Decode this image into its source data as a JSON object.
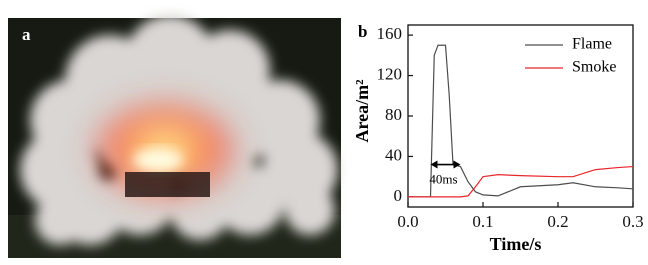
{
  "photo": {
    "label": "a"
  },
  "chart_data": {
    "type": "line",
    "label": "b",
    "xlabel": "Time/s",
    "ylabel": "Area/m²",
    "x": [
      0,
      0.02,
      0.03,
      0.035,
      0.04,
      0.05,
      0.055,
      0.06,
      0.07,
      0.08,
      0.09,
      0.1,
      0.12,
      0.15,
      0.2,
      0.22,
      0.25,
      0.28,
      0.3
    ],
    "series": [
      {
        "name": "Flame",
        "color": "#4d4d4d",
        "values": [
          0,
          0,
          0,
          140,
          150,
          150,
          100,
          32,
          30,
          15,
          5,
          2,
          1,
          10,
          12,
          14,
          10,
          9,
          8
        ]
      },
      {
        "name": "Smoke",
        "color": "#e8262a",
        "values": [
          0,
          0,
          0,
          0,
          0,
          0,
          0,
          0,
          0,
          1,
          10,
          20,
          22,
          21,
          20,
          20,
          27,
          29,
          30
        ]
      }
    ],
    "xlim": [
      0,
      0.3
    ],
    "ylim": [
      -10,
      170
    ],
    "xticks": [
      {
        "value": 0,
        "label": "0.0"
      },
      0.1,
      0.2,
      0.3
    ],
    "yticks": [
      0,
      40,
      80,
      120,
      160
    ],
    "legend": "upper right",
    "annotation": {
      "text": "40ms",
      "x_start": 0.03,
      "x_end": 0.07,
      "y": 30
    }
  }
}
